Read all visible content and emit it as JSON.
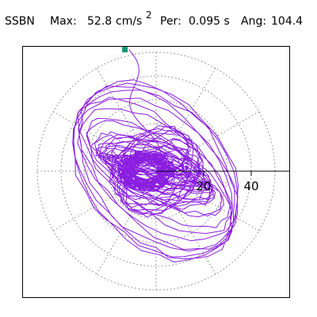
{
  "header": {
    "station": "SSBN",
    "max_label": "Max:",
    "max_value": "52.8",
    "max_unit": "cm/s",
    "max_exp": "2",
    "per_label": "Per:",
    "per_value": "0.095 s",
    "ang_label": "Ang:",
    "ang_value": "104.4"
  },
  "colors": {
    "trace": "#8a1ee0",
    "marker": "#0f9a78",
    "grid": "#808080",
    "axis": "#000000"
  },
  "chart_data": {
    "type": "line",
    "coordinate_system": "polar particle motion",
    "radial_unit": "cm/s2",
    "rmax": 50,
    "grid_rings": [
      10,
      20,
      30,
      40,
      50
    ],
    "grid_spokes_deg": [
      0,
      30,
      60,
      90,
      120,
      150,
      180,
      210,
      240,
      270,
      300,
      330
    ],
    "tick_labels": [
      {
        "value": 20,
        "text": "20"
      },
      {
        "value": 40,
        "text": "40"
      }
    ],
    "peak_amplitude": 52.8,
    "peak_angle_deg": 104.4,
    "dominant_period_s": 0.095,
    "grid": true,
    "title": "",
    "xlabel": "",
    "ylabel": ""
  }
}
